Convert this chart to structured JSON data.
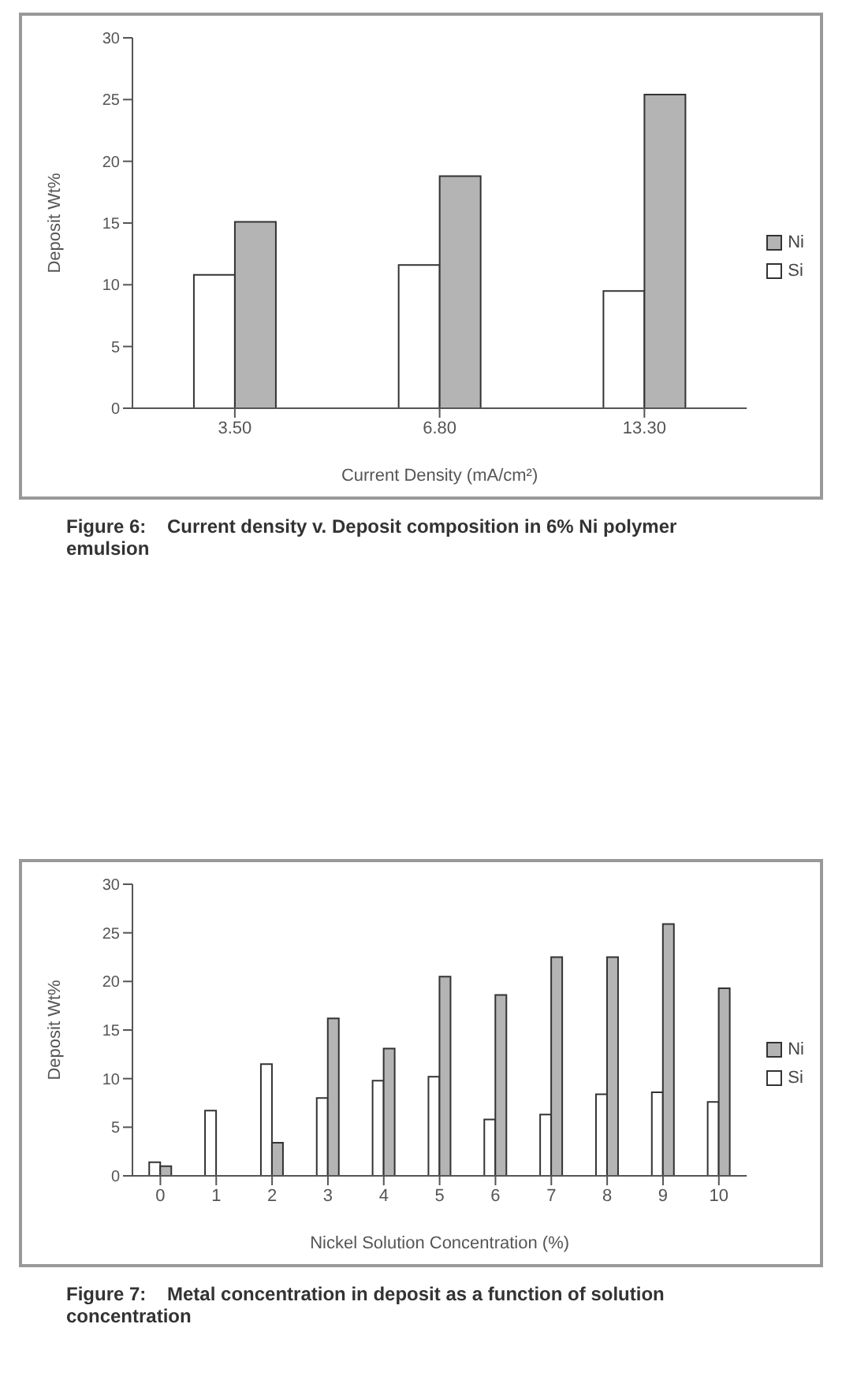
{
  "chart_data": [
    {
      "type": "bar",
      "title": "Figure 6:    Current density v. Deposit composition in 6% Ni polymer emulsion",
      "xlabel": "Current Density (mA/cm²)",
      "ylabel": "Deposit Wt%",
      "categories": [
        "3.50",
        "6.80",
        "13.30"
      ],
      "series": [
        {
          "name": "Si",
          "color": "#ffffff",
          "values": [
            10.8,
            11.6,
            9.5
          ]
        },
        {
          "name": "Ni",
          "color": "#b4b4b4",
          "values": [
            15.1,
            18.8,
            25.4
          ]
        }
      ],
      "ylim": [
        0,
        30
      ],
      "yticks": [
        0,
        5,
        10,
        15,
        20,
        25,
        30
      ],
      "grid": false,
      "legend": "right"
    },
    {
      "type": "bar",
      "title": "Figure 7:    Metal concentration in deposit as a function of solution concentration",
      "xlabel": "Nickel Solution Concentration (%)",
      "ylabel": "Deposit Wt%",
      "categories": [
        "0",
        "1",
        "2",
        "3",
        "4",
        "5",
        "6",
        "7",
        "8",
        "9",
        "10"
      ],
      "series": [
        {
          "name": "Si",
          "color": "#ffffff",
          "values": [
            1.4,
            6.7,
            11.5,
            8.0,
            9.8,
            10.2,
            5.8,
            6.3,
            8.4,
            8.6,
            7.6
          ]
        },
        {
          "name": "Ni",
          "color": "#b4b4b4",
          "values": [
            1.0,
            0,
            3.4,
            16.2,
            13.1,
            20.5,
            18.6,
            22.5,
            22.5,
            25.9,
            19.3
          ]
        }
      ],
      "ylim": [
        0,
        30
      ],
      "yticks": [
        0,
        5,
        10,
        15,
        20,
        25,
        30
      ],
      "grid": false,
      "legend": "right"
    }
  ]
}
